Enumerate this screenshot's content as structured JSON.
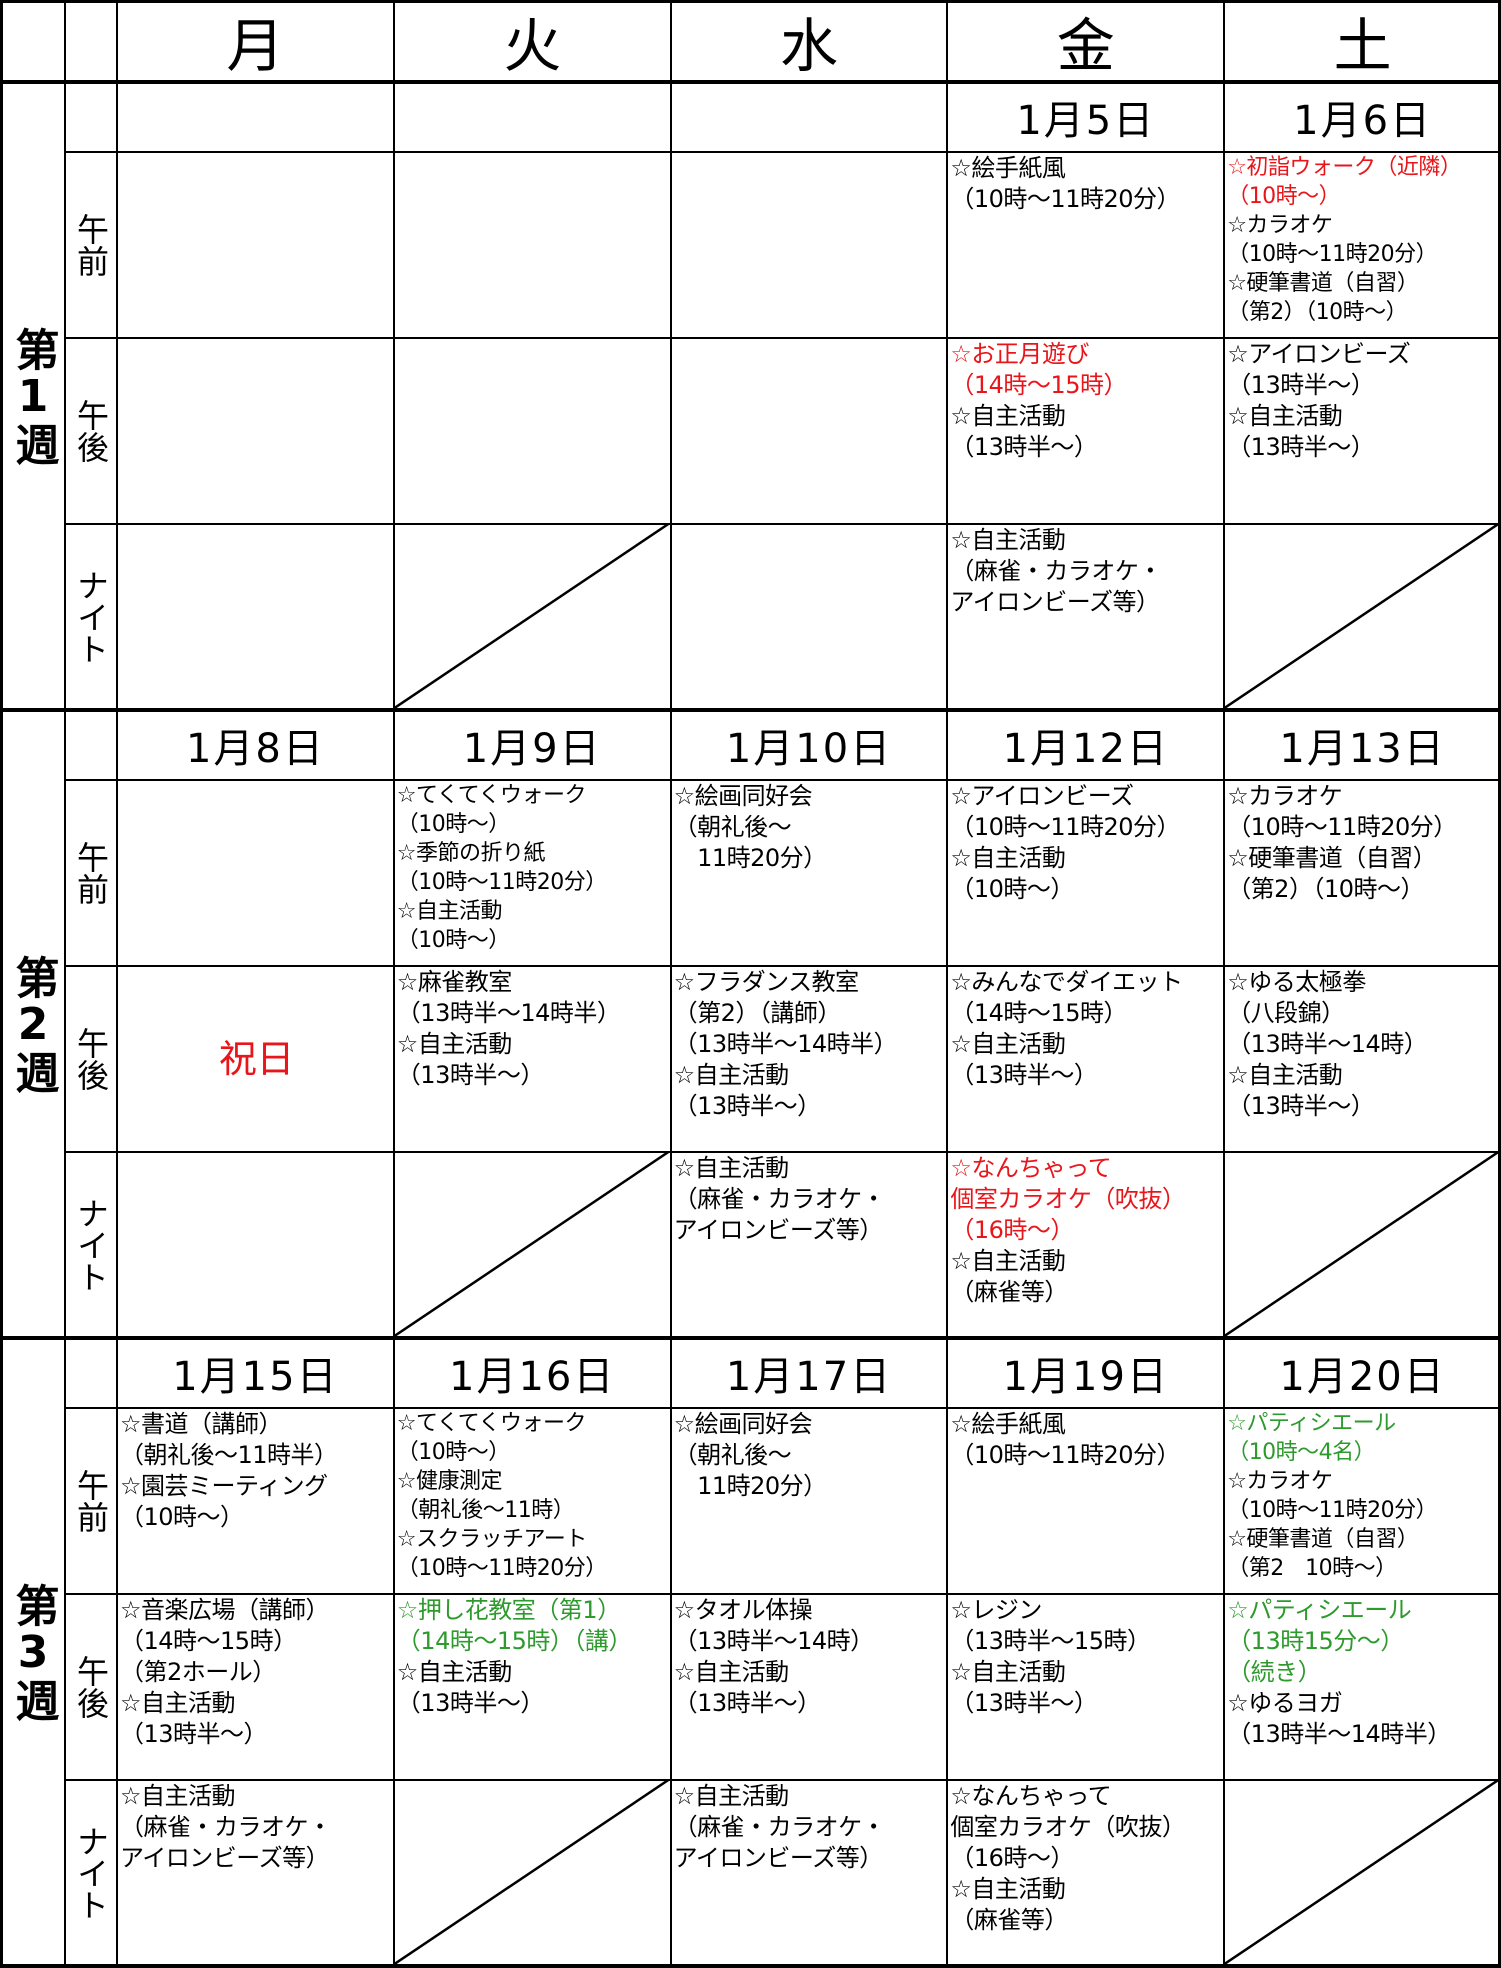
{
  "header": {
    "days": [
      "月",
      "火",
      "水",
      "金",
      "土"
    ]
  },
  "weeks": [
    {
      "label": "第1週",
      "dates": [
        null,
        null,
        null,
        "1月5日",
        "1月6日"
      ],
      "slots": [
        {
          "label": "午前",
          "cells": [
            {
              "lines": []
            },
            {
              "lines": []
            },
            {
              "lines": []
            },
            {
              "lines": [
                {
                  "text": "☆絵手紙風"
                },
                {
                  "text": "（10時～11時20分）"
                }
              ]
            },
            {
              "lines": [
                {
                  "text": "☆初詣ウォーク（近隣）",
                  "color": "#e8161b"
                },
                {
                  "text": "（10時～）",
                  "color": "#e8161b"
                },
                {
                  "text": "☆カラオケ"
                },
                {
                  "text": "（10時～11時20分）"
                },
                {
                  "text": "☆硬筆書道（自習）"
                },
                {
                  "text": "（第2）（10時～）"
                }
              ]
            }
          ]
        },
        {
          "label": "午後",
          "cells": [
            {
              "lines": []
            },
            {
              "lines": []
            },
            {
              "lines": []
            },
            {
              "lines": [
                {
                  "text": "☆お正月遊び",
                  "color": "#e8161b"
                },
                {
                  "text": "（14時～15時）",
                  "color": "#e8161b"
                },
                {
                  "text": "☆自主活動"
                },
                {
                  "text": "（13時半～）"
                }
              ]
            },
            {
              "lines": [
                {
                  "text": "☆アイロンビーズ"
                },
                {
                  "text": "（13時半～）"
                },
                {
                  "text": "☆自主活動"
                },
                {
                  "text": "（13時半～）"
                }
              ]
            }
          ]
        },
        {
          "label": "ナイト",
          "cells": [
            {
              "lines": []
            },
            {
              "lines": [],
              "crossed": true
            },
            {
              "lines": []
            },
            {
              "lines": [
                {
                  "text": "☆自主活動"
                },
                {
                  "text": "（麻雀・カラオケ・"
                },
                {
                  "text": "アイロンビーズ等）"
                }
              ]
            },
            {
              "lines": [],
              "crossed": true
            }
          ]
        }
      ]
    },
    {
      "label": "第2週",
      "dates": [
        "1月8日",
        "1月9日",
        "1月10日",
        "1月12日",
        "1月13日"
      ],
      "slots": [
        {
          "label": "午前",
          "cells": [
            {
              "lines": []
            },
            {
              "lines": [
                {
                  "text": "☆てくてくウォーク"
                },
                {
                  "text": "（10時～）"
                },
                {
                  "text": "☆季節の折り紙"
                },
                {
                  "text": "（10時～11時20分）"
                },
                {
                  "text": "☆自主活動"
                },
                {
                  "text": "（10時～）"
                }
              ]
            },
            {
              "lines": [
                {
                  "text": "☆絵画同好会"
                },
                {
                  "text": "（朝礼後～"
                },
                {
                  "text": "　11時20分）"
                }
              ]
            },
            {
              "lines": [
                {
                  "text": "☆アイロンビーズ"
                },
                {
                  "text": "（10時～11時20分）"
                },
                {
                  "text": "☆自主活動"
                },
                {
                  "text": "（10時～）"
                }
              ]
            },
            {
              "lines": [
                {
                  "text": "☆カラオケ"
                },
                {
                  "text": "（10時～11時20分）"
                },
                {
                  "text": "☆硬筆書道（自習）"
                },
                {
                  "text": "（第2）（10時～）"
                }
              ]
            }
          ]
        },
        {
          "label": "午後",
          "cells": [
            {
              "lines": [
                {
                  "text": "祝日",
                  "color": "#e8161b"
                }
              ],
              "centered": true
            },
            {
              "lines": [
                {
                  "text": "☆麻雀教室"
                },
                {
                  "text": "（13時半～14時半）"
                },
                {
                  "text": "☆自主活動"
                },
                {
                  "text": "（13時半～）"
                }
              ]
            },
            {
              "lines": [
                {
                  "text": "☆フラダンス教室"
                },
                {
                  "text": "（第2）（講師）"
                },
                {
                  "text": "（13時半～14時半）"
                },
                {
                  "text": "☆自主活動"
                },
                {
                  "text": "（13時半～）"
                }
              ]
            },
            {
              "lines": [
                {
                  "text": "☆みんなでダイエット"
                },
                {
                  "text": "（14時～15時）"
                },
                {
                  "text": "☆自主活動"
                },
                {
                  "text": "（13時半～）"
                }
              ]
            },
            {
              "lines": [
                {
                  "text": "☆ゆる太極拳"
                },
                {
                  "text": "（八段錦）"
                },
                {
                  "text": "（13時半～14時）"
                },
                {
                  "text": "☆自主活動"
                },
                {
                  "text": "（13時半～）"
                }
              ]
            }
          ]
        },
        {
          "label": "ナイト",
          "cells": [
            {
              "lines": []
            },
            {
              "lines": [],
              "crossed": true
            },
            {
              "lines": [
                {
                  "text": "☆自主活動"
                },
                {
                  "text": "（麻雀・カラオケ・"
                },
                {
                  "text": "アイロンビーズ等）"
                }
              ]
            },
            {
              "lines": [
                {
                  "text": "☆なんちゃって",
                  "color": "#e8161b"
                },
                {
                  "text": "個室カラオケ（吹抜）",
                  "color": "#e8161b"
                },
                {
                  "text": "（16時～）",
                  "color": "#e8161b"
                },
                {
                  "text": "☆自主活動"
                },
                {
                  "text": "（麻雀等）"
                }
              ]
            },
            {
              "lines": [],
              "crossed": true
            }
          ]
        }
      ]
    },
    {
      "label": "第3週",
      "dates": [
        "1月15日",
        "1月16日",
        "1月17日",
        "1月19日",
        "1月20日"
      ],
      "slots": [
        {
          "label": "午前",
          "cells": [
            {
              "lines": [
                {
                  "text": "☆書道（講師）"
                },
                {
                  "text": "（朝礼後～11時半）"
                },
                {
                  "text": "☆園芸ミーティング"
                },
                {
                  "text": "（10時～）"
                }
              ]
            },
            {
              "lines": [
                {
                  "text": "☆てくてくウォーク"
                },
                {
                  "text": "（10時～）"
                },
                {
                  "text": "☆健康測定"
                },
                {
                  "text": "（朝礼後～11時）"
                },
                {
                  "text": "☆スクラッチアート"
                },
                {
                  "text": "（10時～11時20分）"
                }
              ]
            },
            {
              "lines": [
                {
                  "text": "☆絵画同好会"
                },
                {
                  "text": "（朝礼後～"
                },
                {
                  "text": "　11時20分）"
                }
              ]
            },
            {
              "lines": [
                {
                  "text": "☆絵手紙風"
                },
                {
                  "text": "（10時～11時20分）"
                }
              ]
            },
            {
              "lines": [
                {
                  "text": "☆パティシエール",
                  "color": "#2e9a2e"
                },
                {
                  "text": "（10時～4名）",
                  "color": "#2e9a2e"
                },
                {
                  "text": "☆カラオケ"
                },
                {
                  "text": "（10時～11時20分）"
                },
                {
                  "text": "☆硬筆書道（自習）"
                },
                {
                  "text": "（第2　10時～）"
                }
              ]
            }
          ]
        },
        {
          "label": "午後",
          "cells": [
            {
              "lines": [
                {
                  "text": "☆音楽広場（講師）"
                },
                {
                  "text": "（14時～15時）"
                },
                {
                  "text": "（第2ホール）"
                },
                {
                  "text": "☆自主活動"
                },
                {
                  "text": "（13時半～）"
                }
              ]
            },
            {
              "lines": [
                {
                  "text": "☆押し花教室（第1）",
                  "color": "#2e9a2e"
                },
                {
                  "text": "（14時～15時）（講）",
                  "color": "#2e9a2e"
                },
                {
                  "text": "☆自主活動"
                },
                {
                  "text": "（13時半～）"
                }
              ]
            },
            {
              "lines": [
                {
                  "text": "☆タオル体操"
                },
                {
                  "text": "（13時半～14時）"
                },
                {
                  "text": "☆自主活動"
                },
                {
                  "text": "（13時半～）"
                }
              ]
            },
            {
              "lines": [
                {
                  "text": "☆レジン"
                },
                {
                  "text": "（13時半～15時）"
                },
                {
                  "text": "☆自主活動"
                },
                {
                  "text": "（13時半～）"
                }
              ]
            },
            {
              "lines": [
                {
                  "text": "☆パティシエール",
                  "color": "#2e9a2e"
                },
                {
                  "text": "（13時15分～）",
                  "color": "#2e9a2e"
                },
                {
                  "text": "（続き）",
                  "color": "#2e9a2e"
                },
                {
                  "text": "☆ゆるヨガ"
                },
                {
                  "text": "（13時半～14時半）"
                }
              ]
            }
          ]
        },
        {
          "label": "ナイト",
          "cells": [
            {
              "lines": [
                {
                  "text": "☆自主活動"
                },
                {
                  "text": "（麻雀・カラオケ・"
                },
                {
                  "text": "アイロンビーズ等）"
                }
              ]
            },
            {
              "lines": [],
              "crossed": true
            },
            {
              "lines": [
                {
                  "text": "☆自主活動"
                },
                {
                  "text": "（麻雀・カラオケ・"
                },
                {
                  "text": "アイロンビーズ等）"
                }
              ]
            },
            {
              "lines": [
                {
                  "text": "☆なんちゃって"
                },
                {
                  "text": "個室カラオケ（吹抜）"
                },
                {
                  "text": "（16時～）"
                },
                {
                  "text": "☆自主活動"
                },
                {
                  "text": "（麻雀等）"
                }
              ]
            },
            {
              "lines": [],
              "crossed": true
            }
          ]
        }
      ]
    }
  ]
}
